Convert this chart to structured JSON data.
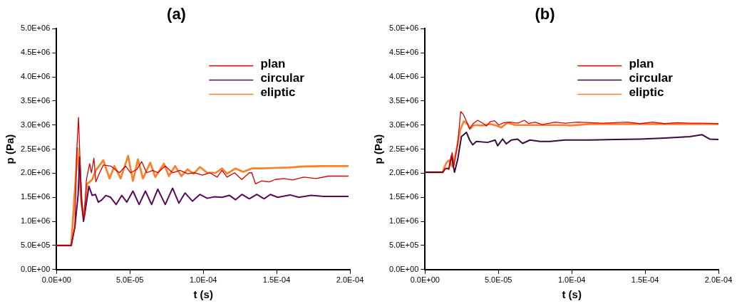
{
  "chart_data": [
    {
      "type": "line",
      "title": "(a)",
      "xlabel": "t (s)",
      "ylabel": "p (Pa)",
      "legend": "top right",
      "grid": false,
      "marker": "none",
      "line_style": "solid",
      "xlim": [
        0,
        0.0002
      ],
      "xticks": [
        {
          "value": 0,
          "label": "0.0E+00"
        },
        {
          "value": 5e-05,
          "label": "5.0E-05"
        },
        {
          "value": 0.0001,
          "label": "1.0E-04"
        },
        {
          "value": 0.00015,
          "label": "1.5E-04"
        },
        {
          "value": 0.0002,
          "label": "2.0E-04"
        }
      ],
      "ylim": [
        0,
        5000000
      ],
      "yticks": [
        {
          "value": 0,
          "label": "0.0E+00"
        },
        {
          "value": 500000,
          "label": "5.0E+05"
        },
        {
          "value": 1000000,
          "label": "1.0E+06"
        },
        {
          "value": 1500000,
          "label": "1.5E+06"
        },
        {
          "value": 2000000,
          "label": "2.0E+06"
        },
        {
          "value": 2500000,
          "label": "2.5E+06"
        },
        {
          "value": 3000000,
          "label": "3.0E+06"
        },
        {
          "value": 3500000,
          "label": "3.5E+06"
        },
        {
          "value": 4000000,
          "label": "4.0E+06"
        },
        {
          "value": 4500000,
          "label": "4.5E+06"
        },
        {
          "value": 5000000,
          "label": "5.0E+06"
        }
      ],
      "series": [
        {
          "name": "plan",
          "color": "#d40000",
          "x": [
            0,
            1e-05,
            1.25e-05,
            1.38e-05,
            1.5e-05,
            1.63e-05,
            1.77e-05,
            1.89e-05,
            2.04e-05,
            2.26e-05,
            2.38e-05,
            2.55e-05,
            2.68e-05,
            2.94e-05,
            3.19e-05,
            3.69e-05,
            4.29e-05,
            4.71e-05,
            5.05e-05,
            5.47e-05,
            5.81e-05,
            6.14e-05,
            6.56e-05,
            6.9e-05,
            7.41e-05,
            7.91e-05,
            8.42e-05,
            8.93e-05,
            9.43e-05,
            9.94e-05,
            0.0001044,
            0.0001095,
            0.0001128,
            0.0001162,
            0.0001213,
            0.0001263,
            0.0001314,
            0.0001331,
            0.0001356,
            0.0001398,
            0.0001449,
            0.0001491,
            0.000155,
            0.0001609,
            0.0001685,
            0.0001769,
            0.0001853,
            0.000199
          ],
          "values": [
            500000,
            500000,
            880000,
            2480000,
            3160000,
            2010000,
            1170000,
            1080000,
            1870000,
            2200000,
            2010000,
            2310000,
            1820000,
            2010000,
            2170000,
            2150000,
            2010000,
            2150000,
            2010000,
            2080000,
            2240000,
            2010000,
            2060000,
            2010000,
            2150000,
            2010000,
            2060000,
            1990000,
            2010000,
            1960000,
            2010000,
            1920000,
            2060000,
            1920000,
            2010000,
            1870000,
            2010000,
            2010000,
            1780000,
            1840000,
            1820000,
            1870000,
            1890000,
            1860000,
            1920000,
            1890000,
            1940000,
            1940000
          ]
        },
        {
          "name": "circular",
          "color": "#5a0a5a",
          "x": [
            0,
            1e-05,
            1.25e-05,
            1.47e-05,
            1.58e-05,
            1.7e-05,
            1.84e-05,
            2e-05,
            2.21e-05,
            2.43e-05,
            2.65e-05,
            2.85e-05,
            3.1e-05,
            3.36e-05,
            3.69e-05,
            4.06e-05,
            4.45e-05,
            4.79e-05,
            5.21e-05,
            5.63e-05,
            6.06e-05,
            6.48e-05,
            6.9e-05,
            7.41e-05,
            7.91e-05,
            8.34e-05,
            8.76e-05,
            9.26e-05,
            9.77e-05,
            0.0001027,
            0.0001078,
            0.0001128,
            0.0001179,
            0.000122,
            0.0001263,
            0.0001314,
            0.0001365,
            0.0001415,
            0.0001457,
            0.0001508,
            0.0001592,
            0.0001651,
            0.0001736,
            0.000182,
            0.0001904,
            0.000199
          ],
          "values": [
            500000,
            500000,
            880000,
            1540000,
            2340000,
            1450000,
            1000000,
            1310000,
            1730000,
            1540000,
            1560000,
            1400000,
            1450000,
            1540000,
            1500000,
            1350000,
            1540000,
            1400000,
            1630000,
            1350000,
            1630000,
            1350000,
            1670000,
            1350000,
            1690000,
            1380000,
            1590000,
            1420000,
            1560000,
            1480000,
            1510000,
            1500000,
            1540000,
            1450000,
            1560000,
            1470000,
            1560000,
            1470000,
            1560000,
            1500000,
            1550000,
            1500000,
            1540000,
            1520000,
            1520000,
            1520000
          ]
        },
        {
          "name": "eliptic",
          "color": "#ff7f27",
          "x": [
            0,
            1e-05,
            1.33e-05,
            1.43e-05,
            1.58e-05,
            1.7e-05,
            1.87e-05,
            2.09e-05,
            2.26e-05,
            2.43e-05,
            2.68e-05,
            3.19e-05,
            3.61e-05,
            3.95e-05,
            4.37e-05,
            4.88e-05,
            5.21e-05,
            5.55e-05,
            5.89e-05,
            6.39e-05,
            6.73e-05,
            7.32e-05,
            7.66e-05,
            8.08e-05,
            8.51e-05,
            8.93e-05,
            9.35e-05,
            9.77e-05,
            0.0001027,
            0.0001086,
            0.0001128,
            0.0001162,
            0.000122,
            0.0001272,
            0.0001331,
            0.0001398,
            0.0001483,
            0.0001584,
            0.0001685,
            0.000182,
            0.000199
          ],
          "values": [
            500000,
            500000,
            2010000,
            2520000,
            1870000,
            1350000,
            1080000,
            1780000,
            1820000,
            1870000,
            2060000,
            2270000,
            1890000,
            2150000,
            1890000,
            2360000,
            1840000,
            2290000,
            1890000,
            2220000,
            1920000,
            2200000,
            1940000,
            2150000,
            1940000,
            2080000,
            1990000,
            2130000,
            2010000,
            2010000,
            2100000,
            1990000,
            2100000,
            2030000,
            2100000,
            2100000,
            2110000,
            2120000,
            2140000,
            2150000,
            2150000
          ]
        }
      ]
    },
    {
      "type": "line",
      "title": "(b)",
      "xlabel": "t (s)",
      "ylabel": "p (Pa)",
      "legend": "top right",
      "grid": false,
      "marker": "none",
      "line_style": "solid",
      "xlim": [
        0,
        0.0002
      ],
      "xticks": [
        {
          "value": 0,
          "label": "0.0E+00"
        },
        {
          "value": 5e-05,
          "label": "5.0E-05"
        },
        {
          "value": 0.0001,
          "label": "1.0E-04"
        },
        {
          "value": 0.00015,
          "label": "1.5E-04"
        },
        {
          "value": 0.0002,
          "label": "2.0E-04"
        }
      ],
      "ylim": [
        0,
        5000000
      ],
      "yticks": [
        {
          "value": 0,
          "label": "0.0E+00"
        },
        {
          "value": 500000,
          "label": "5.0E+05"
        },
        {
          "value": 1000000,
          "label": "1.0E+06"
        },
        {
          "value": 1500000,
          "label": "1.5E+06"
        },
        {
          "value": 2000000,
          "label": "2.0E+06"
        },
        {
          "value": 2500000,
          "label": "2.5E+06"
        },
        {
          "value": 3000000,
          "label": "3.0E+06"
        },
        {
          "value": 3500000,
          "label": "3.5E+06"
        },
        {
          "value": 4000000,
          "label": "4.0E+06"
        },
        {
          "value": 4500000,
          "label": "4.5E+06"
        },
        {
          "value": 5000000,
          "label": "5.0E+06"
        }
      ],
      "series": [
        {
          "name": "plan",
          "color": "#e00000",
          "x": [
            1.21e-05,
            1.4e-05,
            1.63e-05,
            1.85e-05,
            1.97e-05,
            2.23e-05,
            2.43e-05,
            2.6e-05,
            2.82e-05,
            3.04e-05,
            3.28e-05,
            3.59e-05,
            3.93e-05,
            4.18e-05,
            4.44e-05,
            4.74e-05,
            5.03e-05,
            5.37e-05,
            5.8e-05,
            6.31e-05,
            6.78e-05,
            7.07e-05,
            7.5e-05,
            8.01e-05,
            8.86e-05,
            9.54e-05,
            0.0001039,
            0.0001124,
            0.0001209,
            0.0001294,
            0.0001379,
            0.0001464,
            0.0001549,
            0.0001634,
            0.0001719,
            0.0001804,
            0.0001889,
            0.0002
          ],
          "values": [
            2020000,
            2100000,
            2080000,
            2430000,
            2150000,
            2620000,
            3280000,
            3230000,
            3080000,
            2920000,
            3030000,
            3100000,
            3040000,
            2980000,
            3070000,
            3090000,
            3000000,
            3050000,
            3060000,
            3040000,
            3100000,
            3030000,
            3060000,
            3010000,
            3060000,
            3040000,
            3060000,
            3050000,
            3040000,
            3050000,
            3060000,
            3030000,
            3060000,
            3030000,
            3050000,
            3040000,
            3040000,
            3030000
          ]
        },
        {
          "name": "circular",
          "color": "#3c0a3c",
          "x": [
            0,
            1.21e-05,
            1.4e-05,
            1.63e-05,
            1.8e-05,
            2.01e-05,
            2.23e-05,
            2.48e-05,
            2.82e-05,
            3.04e-05,
            3.25e-05,
            3.5e-05,
            4.27e-05,
            4.78e-05,
            4.95e-05,
            5.29e-05,
            5.54e-05,
            5.88e-05,
            6.31e-05,
            6.65e-05,
            7.16e-05,
            7.84e-05,
            8.52e-05,
            9.54e-05,
            0.0001124,
            0.0001294,
            0.0001464,
            0.0001634,
            0.0001804,
            0.0001889,
            0.000194,
            0.0002
          ],
          "values": [
            2020000,
            2020000,
            2100000,
            2100000,
            2360000,
            2020000,
            2290000,
            2760000,
            2850000,
            2690000,
            2590000,
            2660000,
            2640000,
            2690000,
            2570000,
            2710000,
            2610000,
            2690000,
            2710000,
            2620000,
            2690000,
            2660000,
            2660000,
            2690000,
            2690000,
            2700000,
            2710000,
            2730000,
            2760000,
            2800000,
            2710000,
            2700000
          ]
        },
        {
          "name": "eliptic",
          "color": "#ff8030",
          "x": [
            0,
            1.21e-05,
            1.35e-05,
            1.52e-05,
            1.63e-05,
            1.75e-05,
            1.89e-05,
            2.14e-05,
            2.4e-05,
            2.65e-05,
            2.91e-05,
            3.08e-05,
            3.33e-05,
            3.93e-05,
            4.44e-05,
            4.86e-05,
            5.2e-05,
            5.63e-05,
            6.14e-05,
            6.82e-05,
            7.84e-05,
            9.54e-05,
            9.88e-05,
            0.0001124,
            0.0001294,
            0.0001464,
            0.0001634,
            0.0001804,
            0.0002
          ],
          "values": [
            2020000,
            2020000,
            2150000,
            2240000,
            2270000,
            2200000,
            2130000,
            2480000,
            2900000,
            3080000,
            3020000,
            2920000,
            3000000,
            2990000,
            3020000,
            2990000,
            2950000,
            3050000,
            3000000,
            3000000,
            3000000,
            3000000,
            2990000,
            3020000,
            3020000,
            3020000,
            3020000,
            3020000,
            3020000
          ]
        }
      ]
    }
  ]
}
